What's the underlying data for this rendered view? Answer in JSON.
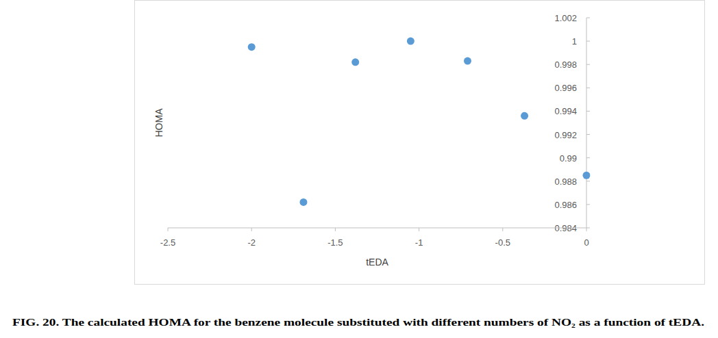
{
  "chart_data": {
    "type": "scatter",
    "title": "FIG. 20. The calculated HOMA for the benzene molecule substituted with different numbers of NO₂ as a function of tEDA.",
    "x_label": "tEDA",
    "y_label": "HOMA",
    "x": [
      -2,
      -1.69,
      -1.38,
      -1.05,
      -0.71,
      -0.37,
      0
    ],
    "values": [
      0.9995,
      0.9862,
      0.9982,
      1.0,
      0.9983,
      0.9936,
      0.9885
    ],
    "color": "#5b9bd5",
    "marker": "circle",
    "xlim": [
      -2.5,
      0
    ],
    "xticks": [
      -2.5,
      -2,
      -1.5,
      -1,
      -0.5,
      0
    ],
    "ylim": [
      0.984,
      1.002
    ],
    "yticks": [
      0.984,
      0.986,
      0.988,
      0.99,
      0.992,
      0.994,
      0.996,
      0.998,
      1,
      1.002
    ],
    "grid": false
  }
}
